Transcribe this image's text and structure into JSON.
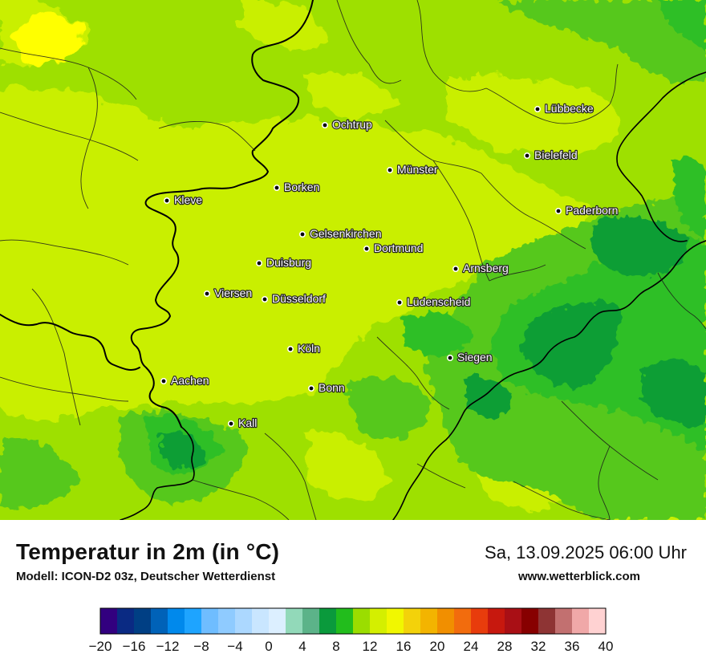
{
  "title": "Temperatur in 2m (in °C)",
  "model": "Modell: ICON-D2 03z, Deutscher Wetterdienst",
  "datetime": "Sa, 13.09.2025 06:00 Uhr",
  "website": "www.wetterblick.com",
  "map": {
    "field_colors": {
      "base": "#9ee000",
      "lowland": "#c9ef00",
      "warm_spot": "#ffff00",
      "mid_green": "#57c81b",
      "hill_green": "#2fbf25",
      "dark_green": "#0f9e35"
    },
    "border_color": "#000000",
    "cities": [
      {
        "name": "Lübbecke"
      },
      {
        "name": "Ochtrup"
      },
      {
        "name": "Bielefeld"
      },
      {
        "name": "Münster"
      },
      {
        "name": "Borken"
      },
      {
        "name": "Kleve"
      },
      {
        "name": "Paderborn"
      },
      {
        "name": "Gelsenkirchen"
      },
      {
        "name": "Dortmund"
      },
      {
        "name": "Duisburg"
      },
      {
        "name": "Arnsberg"
      },
      {
        "name": "Viersen"
      },
      {
        "name": "Düsseldorf"
      },
      {
        "name": "Lüdenscheid"
      },
      {
        "name": "Köln"
      },
      {
        "name": "Siegen"
      },
      {
        "name": "Aachen"
      },
      {
        "name": "Bonn"
      },
      {
        "name": "Kall"
      }
    ]
  },
  "legend": {
    "min": -20,
    "max": 40,
    "step": 2,
    "tick_labels": [
      "−20",
      "−16",
      "−12",
      "−8",
      "−4",
      "0",
      "4",
      "8",
      "12",
      "16",
      "20",
      "24",
      "28",
      "32",
      "36",
      "40"
    ],
    "colors": [
      "#32007f",
      "#0a2a83",
      "#003f84",
      "#0062b8",
      "#0089ec",
      "#1ea4ff",
      "#6fbdff",
      "#8fcbff",
      "#acd8ff",
      "#c9e6ff",
      "#dcefff",
      "#92d9b9",
      "#5cb389",
      "#0a9a3c",
      "#22bd1c",
      "#9bdd00",
      "#d4ef00",
      "#f1f700",
      "#f3d20a",
      "#f3b400",
      "#f18f00",
      "#f26c0d",
      "#e83c0c",
      "#c7180e",
      "#a90f15",
      "#870000",
      "#8e3434",
      "#c27070",
      "#f0a8a8",
      "#ffd2d2"
    ]
  }
}
